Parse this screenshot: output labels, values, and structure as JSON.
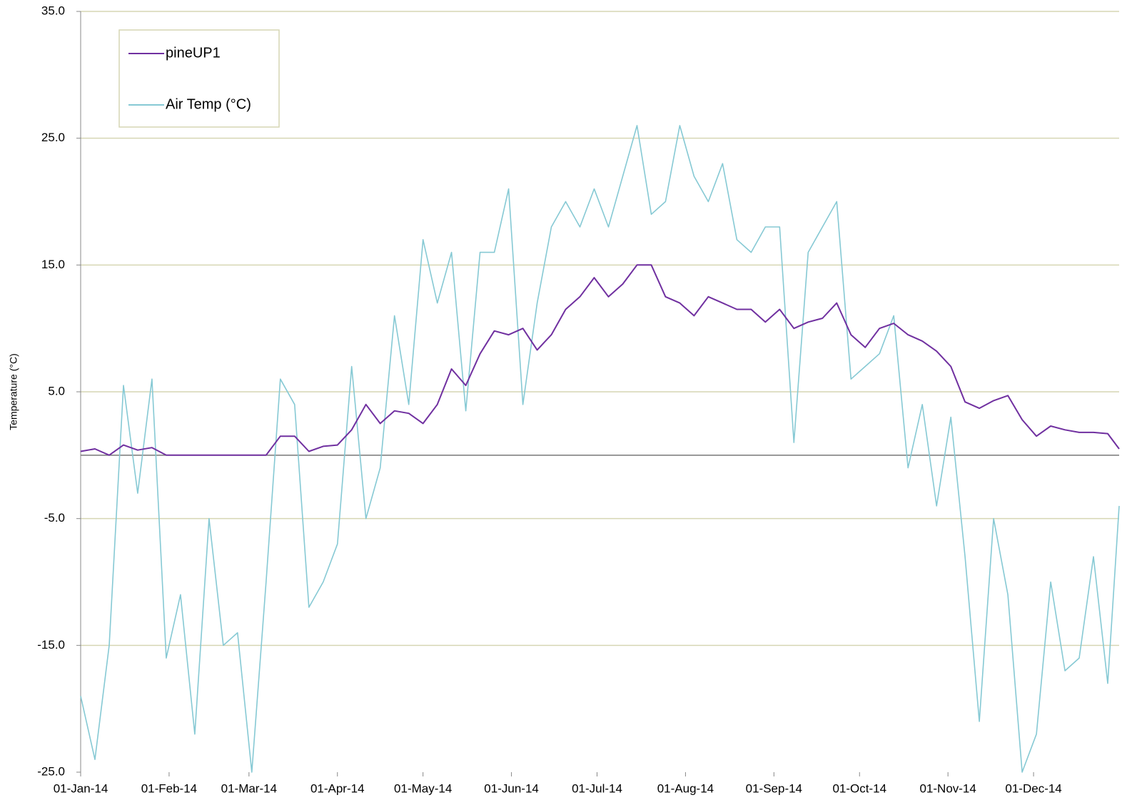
{
  "chart_data": {
    "type": "line",
    "y_label": "Temperature (°C)",
    "x": [
      "01-Jan-14",
      "06-Jan-14",
      "11-Jan-14",
      "16-Jan-14",
      "21-Jan-14",
      "26-Jan-14",
      "31-Jan-14",
      "05-Feb-14",
      "10-Feb-14",
      "15-Feb-14",
      "20-Feb-14",
      "25-Feb-14",
      "02-Mar-14",
      "07-Mar-14",
      "12-Mar-14",
      "17-Mar-14",
      "22-Mar-14",
      "27-Mar-14",
      "01-Apr-14",
      "06-Apr-14",
      "11-Apr-14",
      "16-Apr-14",
      "21-Apr-14",
      "26-Apr-14",
      "01-May-14",
      "06-May-14",
      "11-May-14",
      "16-May-14",
      "21-May-14",
      "26-May-14",
      "31-May-14",
      "05-Jun-14",
      "10-Jun-14",
      "15-Jun-14",
      "20-Jun-14",
      "25-Jun-14",
      "30-Jun-14",
      "05-Jul-14",
      "10-Jul-14",
      "15-Jul-14",
      "20-Jul-14",
      "25-Jul-14",
      "30-Jul-14",
      "04-Aug-14",
      "09-Aug-14",
      "14-Aug-14",
      "19-Aug-14",
      "24-Aug-14",
      "29-Aug-14",
      "03-Sep-14",
      "08-Sep-14",
      "13-Sep-14",
      "18-Sep-14",
      "23-Sep-14",
      "28-Sep-14",
      "03-Oct-14",
      "08-Oct-14",
      "13-Oct-14",
      "18-Oct-14",
      "23-Oct-14",
      "28-Oct-14",
      "02-Nov-14",
      "07-Nov-14",
      "12-Nov-14",
      "17-Nov-14",
      "22-Nov-14",
      "27-Nov-14",
      "02-Dec-14",
      "07-Dec-14",
      "12-Dec-14",
      "17-Dec-14",
      "22-Dec-14",
      "27-Dec-14",
      "31-Dec-14"
    ],
    "series": [
      {
        "name": "pineUP1",
        "color": "#7030a0",
        "values": [
          0.3,
          0.5,
          0,
          0.8,
          0.4,
          0.6,
          0,
          0,
          0,
          0,
          0,
          0,
          0,
          0,
          1.5,
          1.5,
          0.3,
          0.7,
          0.8,
          2,
          4,
          2.5,
          3.5,
          3.3,
          2.5,
          4,
          6.8,
          5.5,
          8,
          9.8,
          9.5,
          10,
          8.3,
          9.5,
          11.5,
          12.5,
          14,
          12.5,
          13.5,
          15,
          15,
          12.5,
          12,
          11,
          12.5,
          12,
          11.5,
          11.5,
          10.5,
          11.5,
          10,
          10.5,
          10.8,
          12,
          9.5,
          8.5,
          10,
          10.4,
          9.5,
          9,
          8.2,
          7,
          4.2,
          3.7,
          4.3,
          4.7,
          2.8,
          1.5,
          2.3,
          2,
          1.8,
          1.8,
          1.7,
          0.5
        ]
      },
      {
        "name": "Air Temp (°C)",
        "color": "#86c9d4",
        "values": [
          -19,
          -24,
          -15,
          5.5,
          -3,
          6,
          -16,
          -11,
          -22,
          -5,
          -15,
          -14,
          -25,
          -10,
          6,
          4,
          -12,
          -10,
          -7,
          7,
          -5,
          -1,
          11,
          4,
          17,
          12,
          16,
          3.5,
          16,
          16,
          21,
          4,
          12,
          18,
          20,
          18,
          21,
          18,
          22,
          26,
          19,
          20,
          26,
          22,
          20,
          23,
          17,
          16,
          18,
          18,
          1,
          16,
          18,
          20,
          6,
          7,
          8,
          11,
          -1,
          4,
          -4,
          3,
          -8,
          -21,
          -5,
          -11,
          -25,
          -22,
          -10,
          -17,
          -16,
          -8,
          -18,
          -4
        ]
      }
    ],
    "xlim": [
      "01-Jan-14",
      "31-Dec-14"
    ],
    "xticks": [
      "01-Jan-14",
      "01-Feb-14",
      "01-Mar-14",
      "01-Apr-14",
      "01-May-14",
      "01-Jun-14",
      "01-Jul-14",
      "01-Aug-14",
      "01-Sep-14",
      "01-Oct-14",
      "01-Nov-14",
      "01-Dec-14"
    ],
    "ylim": [
      -25,
      35
    ],
    "yticks": [
      {
        "value": -25,
        "label": "-25.0"
      },
      {
        "value": -15,
        "label": "-15.0"
      },
      {
        "value": -5,
        "label": "-5.0"
      },
      {
        "value": 5,
        "label": "5.0"
      },
      {
        "value": 15,
        "label": "15.0"
      },
      {
        "value": 25,
        "label": "25.0"
      },
      {
        "value": 35,
        "label": "35.0"
      }
    ],
    "grid": true,
    "legend": "top-left"
  }
}
